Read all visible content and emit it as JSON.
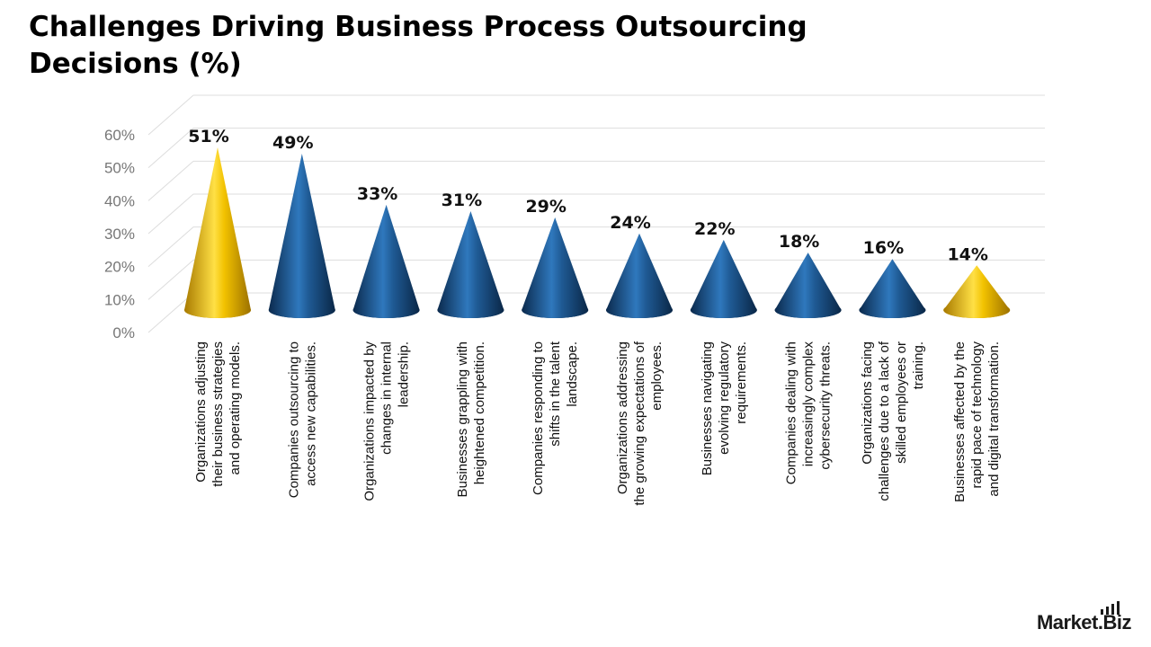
{
  "title": "Challenges Driving Business Process Outsourcing Decisions (%)",
  "brand": {
    "name": "Market.Biz",
    "icon": "bar-chart-logo-icon"
  },
  "colors": {
    "highlight": "#f2c200",
    "highlight_dark": "#b88a00",
    "bar": "#1f5a94",
    "bar_dark": "#0d2f55",
    "grid": "#dddddd",
    "tick_text": "#777777"
  },
  "chart_data": {
    "type": "bar",
    "style": "3d-cone",
    "grid": true,
    "legend": "none",
    "ylim": [
      0,
      60
    ],
    "yticks": [
      0,
      10,
      20,
      30,
      40,
      50,
      60
    ],
    "ytick_labels": [
      "0%",
      "10%",
      "20%",
      "30%",
      "40%",
      "50%",
      "60%"
    ],
    "categories": [
      "Organizations adjusting their business strategies and operating models.",
      "Companies outsourcing to access new capabilities.",
      "Organizations impacted by changes in internal leadership.",
      "Businesses grappling with heightened competition.",
      "Companies responding to shifts in the talent landscape.",
      "Organizations addressing the growing expectations of employees.",
      "Businesses navigating evolving regulatory requirements.",
      "Companies dealing with increasingly complex cybersecurity threats.",
      "Organizations facing challenges due to a lack of skilled employees or training.",
      "Businesses affected by the rapid pace of technology and digital transformation."
    ],
    "values": [
      51,
      49,
      33,
      31,
      29,
      24,
      22,
      18,
      16,
      14
    ],
    "data_labels": [
      "51%",
      "49%",
      "33%",
      "31%",
      "29%",
      "24%",
      "22%",
      "18%",
      "16%",
      "14%"
    ],
    "highlighted": [
      0,
      9
    ]
  }
}
